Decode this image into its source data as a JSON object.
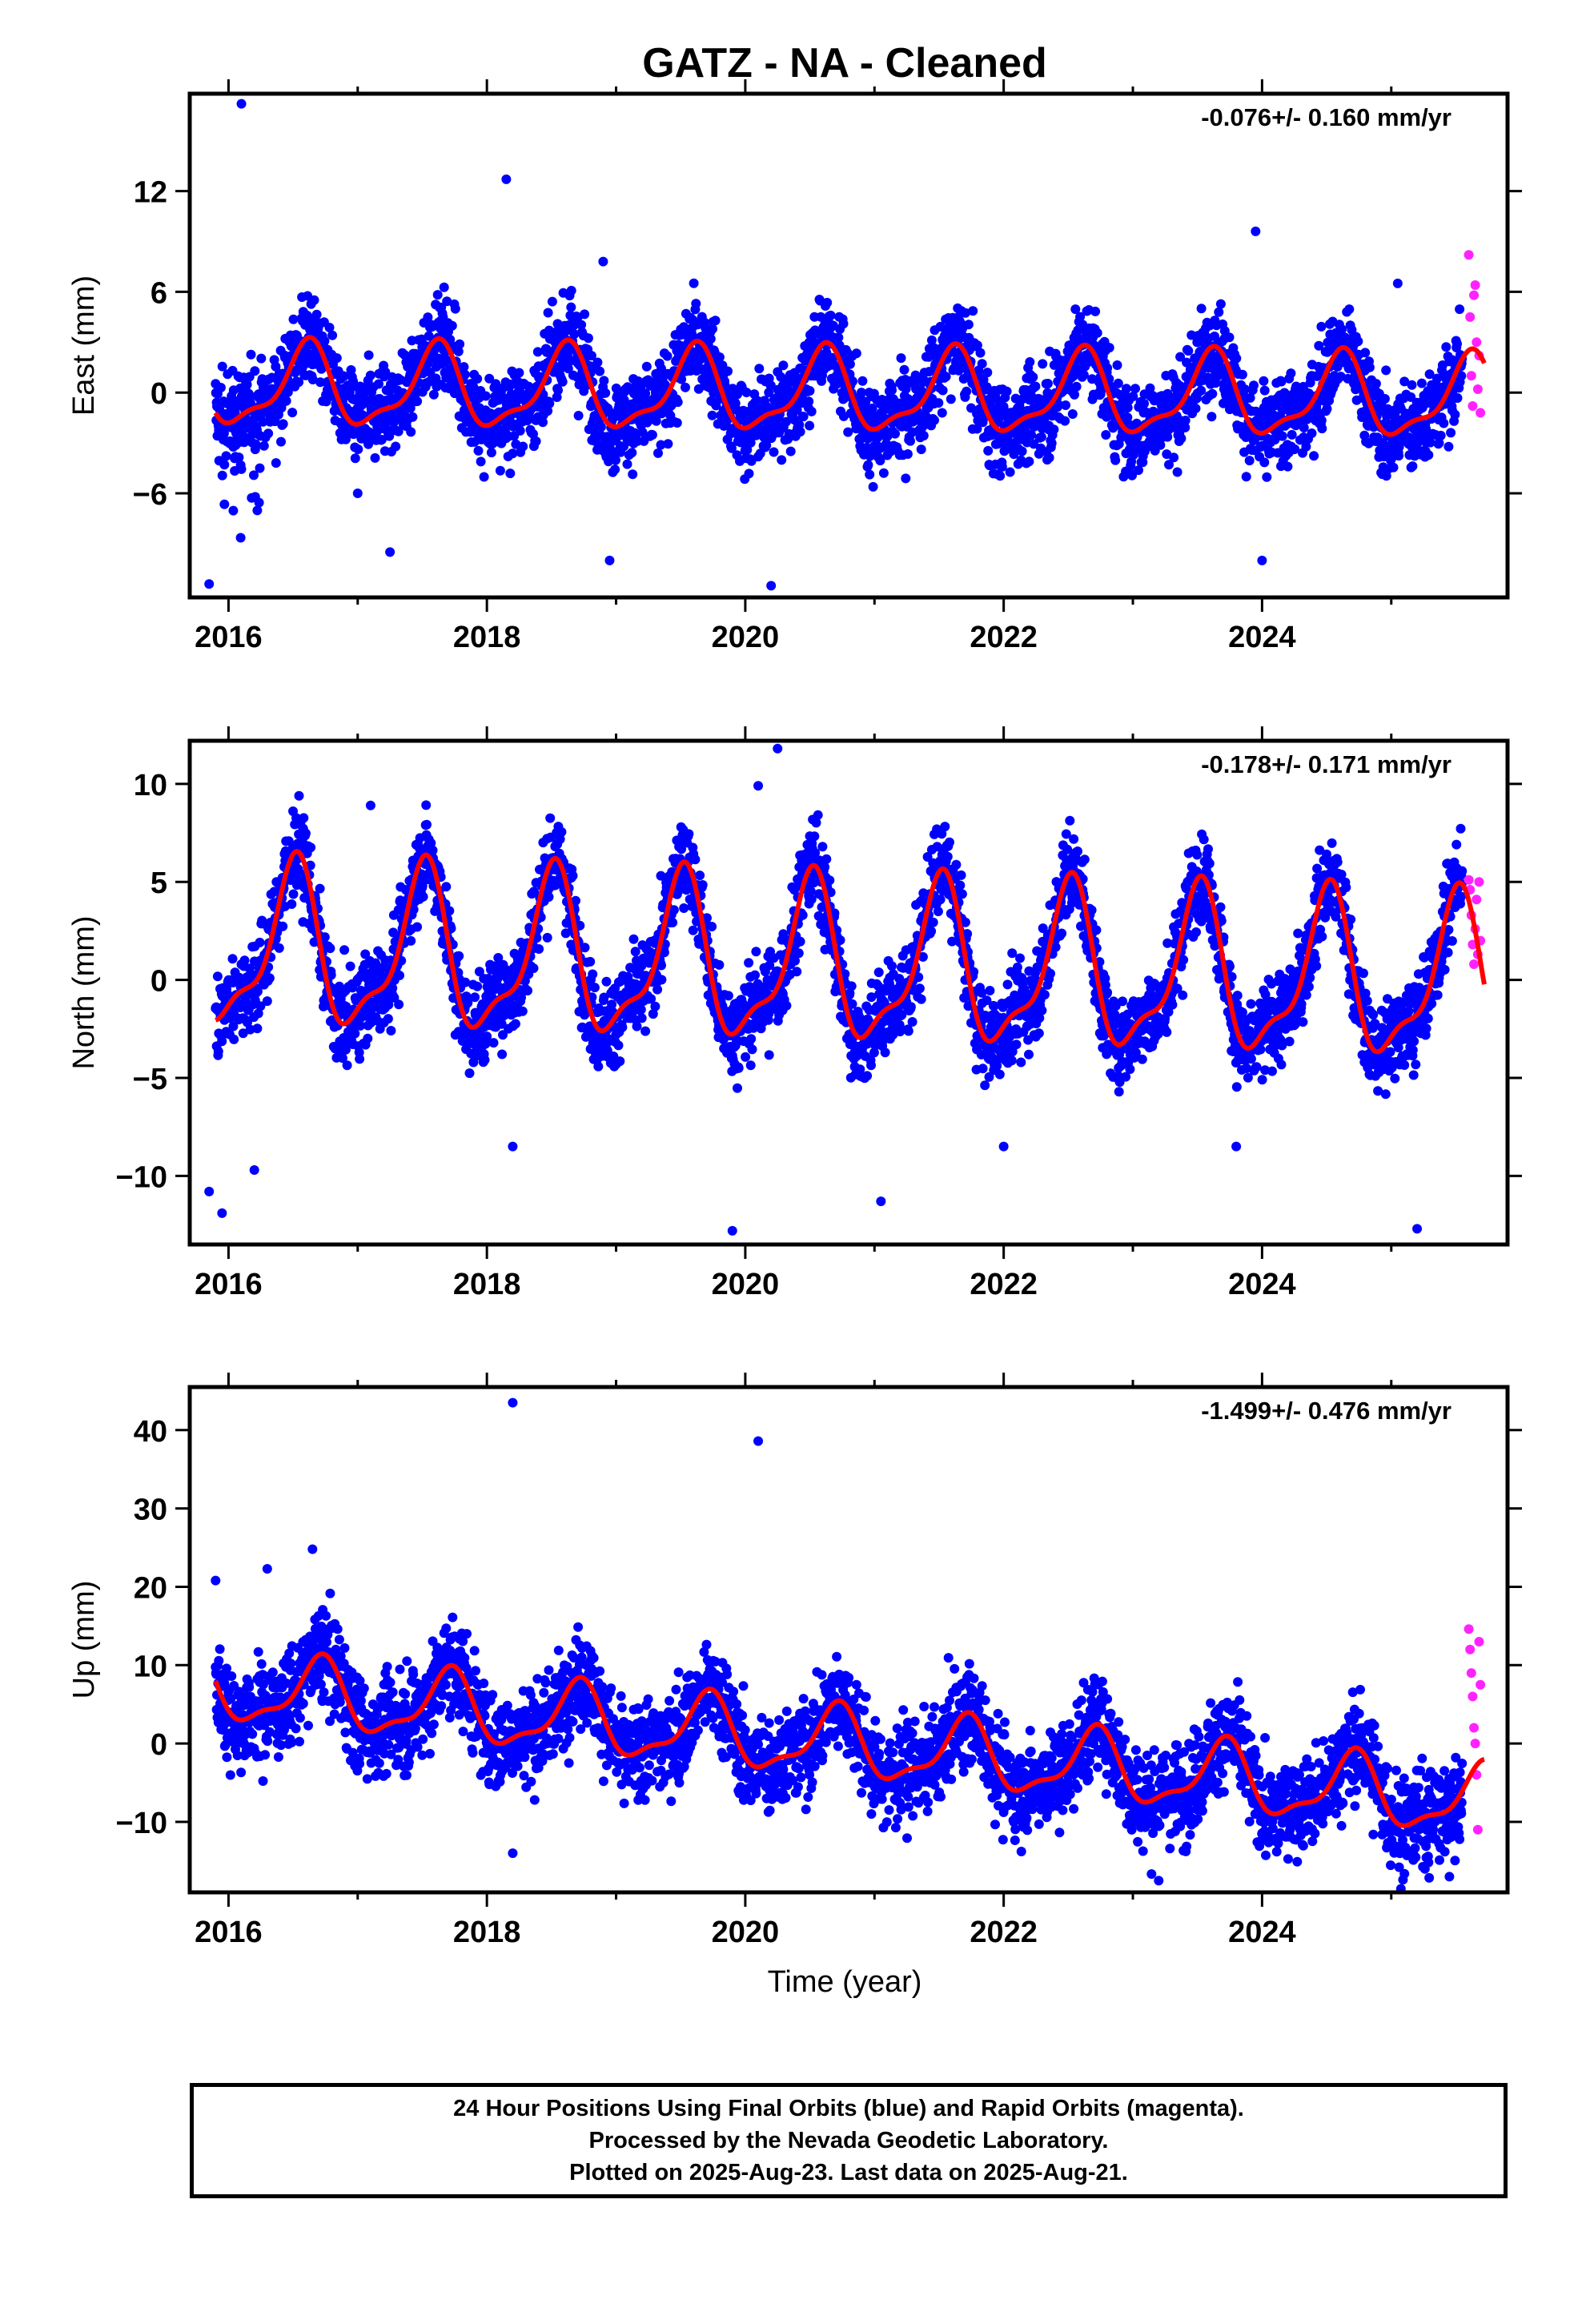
{
  "title": "GATZ  - NA - Cleaned",
  "xlabel": "Time (year)",
  "colors": {
    "final": "#0000ff",
    "rapid": "#ff22ff",
    "model": "#ff0000"
  },
  "footer": {
    "line1": "24 Hour Positions Using Final Orbits (blue) and Rapid Orbits (magenta).",
    "line2": "Processed by the Nevada Geodetic Laboratory.",
    "line3": "Plotted on 2025-Aug-23. Last data on 2025-Aug-21."
  },
  "chart_data": [
    {
      "type": "scatter",
      "ylabel": "East (mm)",
      "rate_text": "-0.076+/- 0.160 mm/yr",
      "xlim": [
        2015.7,
        2025.9
      ],
      "ylim": [
        -12.2,
        17.8
      ],
      "yticks": [
        -6,
        0,
        6,
        12
      ],
      "xticks": [
        2016,
        2018,
        2020,
        2022,
        2024
      ],
      "model": {
        "mean": 0.3,
        "trend": -0.076,
        "annual_amp": 2.3,
        "peak_phase": 0.6,
        "scatter_sd": 1.3
      },
      "outliers": [
        [
          2016.1,
          17.2
        ],
        [
          2015.85,
          -11.4
        ],
        [
          2017.0,
          -6.0
        ],
        [
          2017.25,
          -9.5
        ],
        [
          2018.15,
          12.7
        ],
        [
          2018.9,
          7.8
        ],
        [
          2018.95,
          -10.0
        ],
        [
          2020.2,
          -11.5
        ],
        [
          2023.95,
          9.6
        ],
        [
          2024.0,
          -10.0
        ],
        [
          2025.05,
          6.5
        ]
      ],
      "rapid": [
        [
          2025.6,
          8.2
        ],
        [
          2025.61,
          4.5
        ],
        [
          2025.62,
          1.0
        ],
        [
          2025.63,
          -0.8
        ],
        [
          2025.64,
          5.8
        ],
        [
          2025.65,
          6.4
        ],
        [
          2025.66,
          3.0
        ],
        [
          2025.67,
          0.2
        ],
        [
          2025.68,
          2.2
        ],
        [
          2025.69,
          -1.2
        ]
      ]
    },
    {
      "type": "scatter",
      "ylabel": "North (mm)",
      "rate_text": "-0.178+/- 0.171 mm/yr",
      "xlim": [
        2015.7,
        2025.9
      ],
      "ylim": [
        -13.5,
        12.2
      ],
      "yticks": [
        -10,
        -5,
        0,
        5,
        10
      ],
      "xticks": [
        2016,
        2018,
        2020,
        2022,
        2024
      ],
      "model": {
        "mean": 1.5,
        "trend": -0.178,
        "annual_amp": 3.9,
        "peak_phase": 0.5,
        "scatter_sd": 1.1
      },
      "outliers": [
        [
          2015.85,
          -10.8
        ],
        [
          2015.95,
          -11.9
        ],
        [
          2016.2,
          -9.7
        ],
        [
          2017.1,
          8.9
        ],
        [
          2018.2,
          -8.5
        ],
        [
          2019.9,
          -12.8
        ],
        [
          2020.1,
          9.9
        ],
        [
          2020.25,
          11.8
        ],
        [
          2021.05,
          -11.3
        ],
        [
          2022.0,
          -8.5
        ],
        [
          2023.8,
          -8.5
        ],
        [
          2025.2,
          -12.7
        ]
      ],
      "rapid": [
        [
          2025.6,
          5.1
        ],
        [
          2025.61,
          4.6
        ],
        [
          2025.62,
          3.3
        ],
        [
          2025.63,
          1.8
        ],
        [
          2025.64,
          0.8
        ],
        [
          2025.65,
          2.6
        ],
        [
          2025.66,
          4.1
        ],
        [
          2025.67,
          1.3
        ],
        [
          2025.68,
          5.0
        ],
        [
          2025.69,
          2.0
        ]
      ]
    },
    {
      "type": "scatter",
      "ylabel": "Up (mm)",
      "rate_text": "-1.499+/- 0.476 mm/yr",
      "xlim": [
        2015.7,
        2025.9
      ],
      "ylim": [
        -19.0,
        45.5
      ],
      "yticks": [
        -10,
        0,
        10,
        20,
        30,
        40
      ],
      "xticks": [
        2016,
        2018,
        2020,
        2022,
        2024
      ],
      "model": {
        "mean": 7.0,
        "trend": -1.499,
        "annual_amp": 4.2,
        "peak_phase": 0.7,
        "scatter_sd": 3.0
      },
      "outliers": [
        [
          2015.9,
          20.8
        ],
        [
          2016.3,
          22.3
        ],
        [
          2016.65,
          24.8
        ],
        [
          2018.2,
          43.5
        ],
        [
          2018.2,
          -14.0
        ],
        [
          2020.1,
          38.6
        ],
        [
          2023.2,
          -17.5
        ],
        [
          2025.45,
          -17.0
        ]
      ],
      "rapid": [
        [
          2025.6,
          14.6
        ],
        [
          2025.61,
          12.0
        ],
        [
          2025.62,
          9.0
        ],
        [
          2025.63,
          6.0
        ],
        [
          2025.64,
          2.0
        ],
        [
          2025.65,
          0.0
        ],
        [
          2025.66,
          -4.0
        ],
        [
          2025.67,
          -11.0
        ],
        [
          2025.68,
          13.0
        ],
        [
          2025.69,
          7.5
        ]
      ]
    }
  ]
}
